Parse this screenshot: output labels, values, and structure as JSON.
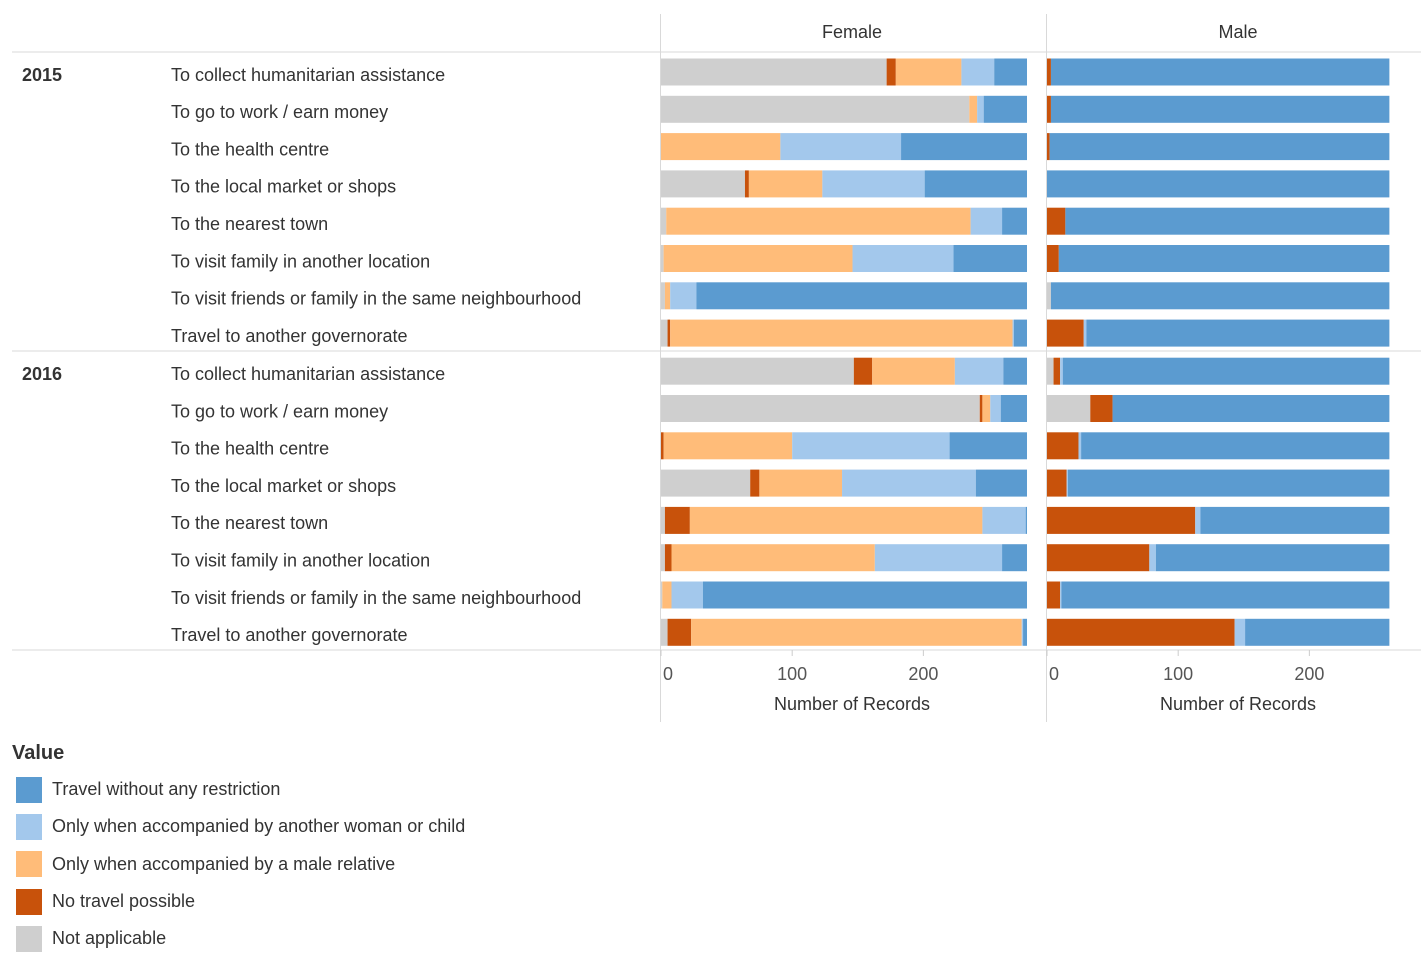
{
  "chart_data": {
    "type": "bar",
    "stacked": true,
    "orientation": "horizontal",
    "facet_headers": [
      "Female",
      "Male"
    ],
    "xlabel": "Number of Records",
    "xlim": [
      0,
      280
    ],
    "xticks": [
      0,
      100,
      200
    ],
    "series": [
      {
        "name": "Not applicable",
        "color": "#cfcfcf"
      },
      {
        "name": "No travel possible",
        "color": "#c8520b"
      },
      {
        "name": "Only when accompanied by a male relative",
        "color": "#ffbc79"
      },
      {
        "name": "Only when accompanied by another woman or child",
        "color": "#a3c8ec"
      },
      {
        "name": "Travel without any restriction",
        "color": "#5b9bd0"
      }
    ],
    "groups": [
      {
        "year": "2015",
        "rows": [
          {
            "label": "To collect humanitarian assistance",
            "female": [
              172,
              7,
              50,
              25,
              25
            ],
            "male": [
              0,
              3,
              0,
              0,
              258
            ]
          },
          {
            "label": "To go to work / earn money",
            "female": [
              235,
              0,
              6,
              5,
              33
            ],
            "male": [
              0,
              3,
              0,
              0,
              258
            ]
          },
          {
            "label": "To the health centre",
            "female": [
              0,
              0,
              91,
              92,
              96
            ],
            "male": [
              0,
              2,
              0,
              0,
              259
            ]
          },
          {
            "label": "To the local market or shops",
            "female": [
              64,
              3,
              56,
              78,
              78
            ],
            "male": [
              0,
              0,
              0,
              0,
              261
            ]
          },
          {
            "label": "To the nearest town",
            "female": [
              4,
              0,
              232,
              24,
              19
            ],
            "male": [
              0,
              14,
              0,
              0,
              247
            ]
          },
          {
            "label": "To visit family in another location",
            "female": [
              2,
              0,
              144,
              77,
              56
            ],
            "male": [
              0,
              9,
              0,
              0,
              252
            ]
          },
          {
            "label": "To visit friends or family in the same neighbourhood",
            "female": [
              3,
              0,
              4,
              20,
              252
            ],
            "male": [
              3,
              0,
              0,
              0,
              258
            ]
          },
          {
            "label": "Travel to another governorate",
            "female": [
              5,
              2,
              261,
              1,
              10
            ],
            "male": [
              0,
              28,
              0,
              2,
              231
            ]
          }
        ]
      },
      {
        "year": "2016",
        "rows": [
          {
            "label": "To collect humanitarian assistance",
            "female": [
              147,
              14,
              63,
              37,
              18
            ],
            "male": [
              5,
              5,
              0,
              2,
              249
            ]
          },
          {
            "label": "To go to work / earn money",
            "female": [
              243,
              2,
              6,
              8,
              20
            ],
            "male": [
              33,
              17,
              0,
              0,
              211
            ]
          },
          {
            "label": "To the health centre",
            "female": [
              0,
              2,
              98,
              120,
              59
            ],
            "male": [
              0,
              24,
              0,
              2,
              235
            ]
          },
          {
            "label": "To the local market or shops",
            "female": [
              68,
              7,
              63,
              102,
              39
            ],
            "male": [
              0,
              15,
              0,
              1,
              245
            ]
          },
          {
            "label": "To the nearest town",
            "female": [
              3,
              19,
              223,
              33,
              1
            ],
            "male": [
              0,
              113,
              0,
              4,
              144
            ]
          },
          {
            "label": "To visit family in another location",
            "female": [
              3,
              5,
              155,
              97,
              19
            ],
            "male": [
              0,
              78,
              0,
              5,
              178
            ]
          },
          {
            "label": "To visit friends or family in the same neighbourhood",
            "female": [
              1,
              0,
              7,
              24,
              247
            ],
            "male": [
              0,
              10,
              0,
              1,
              250
            ]
          },
          {
            "label": "Travel to another governorate",
            "female": [
              5,
              18,
              252,
              1,
              3
            ],
            "male": [
              0,
              143,
              0,
              8,
              110
            ]
          }
        ]
      }
    ]
  },
  "legend": {
    "title": "Value",
    "items": [
      {
        "label": "Travel without any restriction",
        "color": "#5b9bd0"
      },
      {
        "label": "Only when accompanied by another woman or child",
        "color": "#a3c8ec"
      },
      {
        "label": "Only when accompanied by a male relative",
        "color": "#ffbc79"
      },
      {
        "label": "No travel possible",
        "color": "#c8520b"
      },
      {
        "label": "Not applicable",
        "color": "#cfcfcf"
      }
    ]
  }
}
